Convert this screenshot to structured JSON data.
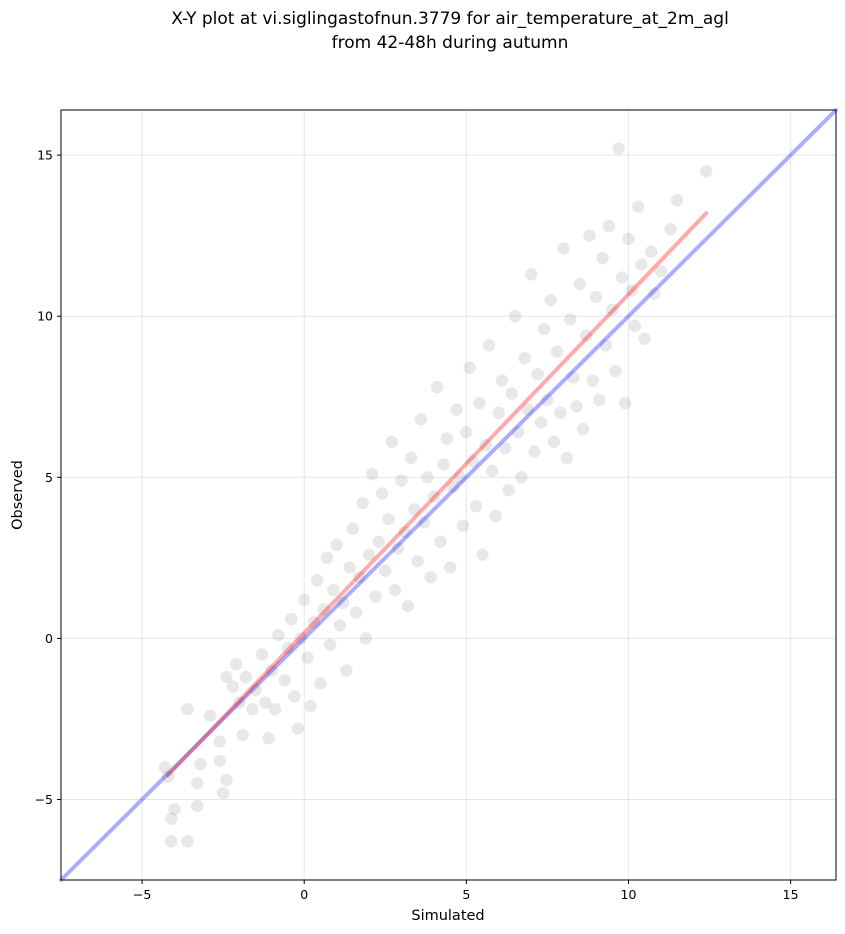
{
  "chart_data": {
    "type": "scatter",
    "title_lines": [
      "X-Y plot at vi.siglingastofnun.3779 for air_temperature_at_2m_agl",
      "from 42-48h during autumn"
    ],
    "xlabel": "Simulated",
    "ylabel": "Observed",
    "xlim": [
      -7.5,
      16.4
    ],
    "ylim": [
      -7.5,
      16.4
    ],
    "xticks": [
      -5,
      0,
      5,
      10,
      15
    ],
    "yticks": [
      -5,
      0,
      5,
      10,
      15
    ],
    "xtick_labels": [
      "−5",
      "0",
      "5",
      "10",
      "15"
    ],
    "ytick_labels": [
      "−5",
      "0",
      "5",
      "10",
      "15"
    ],
    "grid": true,
    "marker_color": "#000000",
    "marker_alpha": 0.09,
    "series": [
      {
        "type": "scatter",
        "points": [
          [
            -4.3,
            -4.0
          ],
          [
            -4.2,
            -4.3
          ],
          [
            -4.1,
            -5.6
          ],
          [
            -4.0,
            -5.3
          ],
          [
            -4.1,
            -6.3
          ],
          [
            -3.6,
            -6.3
          ],
          [
            -3.6,
            -2.2
          ],
          [
            -3.2,
            -3.9
          ],
          [
            -3.3,
            -4.5
          ],
          [
            -3.3,
            -5.2
          ],
          [
            -2.9,
            -2.4
          ],
          [
            -2.6,
            -3.2
          ],
          [
            -2.6,
            -3.8
          ],
          [
            -2.5,
            -4.8
          ],
          [
            -2.4,
            -4.4
          ],
          [
            -2.4,
            -1.2
          ],
          [
            -2.2,
            -1.5
          ],
          [
            -2.1,
            -0.8
          ],
          [
            -2.0,
            -2.0
          ],
          [
            -1.9,
            -3.0
          ],
          [
            -1.8,
            -1.2
          ],
          [
            -1.6,
            -2.2
          ],
          [
            -1.5,
            -1.6
          ],
          [
            -1.3,
            -0.5
          ],
          [
            -1.2,
            -2.0
          ],
          [
            -1.1,
            -3.1
          ],
          [
            -1.0,
            -1.0
          ],
          [
            -0.9,
            -2.2
          ],
          [
            -0.8,
            0.1
          ],
          [
            -0.6,
            -1.3
          ],
          [
            -0.5,
            -0.3
          ],
          [
            -0.4,
            0.6
          ],
          [
            -0.3,
            -1.8
          ],
          [
            -0.2,
            -2.8
          ],
          [
            -0.1,
            0.0
          ],
          [
            0.0,
            1.2
          ],
          [
            0.1,
            -0.6
          ],
          [
            0.2,
            -2.1
          ],
          [
            0.3,
            0.5
          ],
          [
            0.4,
            1.8
          ],
          [
            0.5,
            -1.4
          ],
          [
            0.6,
            0.9
          ],
          [
            0.7,
            2.5
          ],
          [
            0.8,
            -0.2
          ],
          [
            0.9,
            1.5
          ],
          [
            1.0,
            2.9
          ],
          [
            1.1,
            0.4
          ],
          [
            1.2,
            1.1
          ],
          [
            1.3,
            -1.0
          ],
          [
            1.4,
            2.2
          ],
          [
            1.5,
            3.4
          ],
          [
            1.6,
            0.8
          ],
          [
            1.7,
            1.9
          ],
          [
            1.8,
            4.2
          ],
          [
            1.9,
            0.0
          ],
          [
            2.0,
            2.6
          ],
          [
            2.1,
            5.1
          ],
          [
            2.2,
            1.3
          ],
          [
            2.3,
            3.0
          ],
          [
            2.4,
            4.5
          ],
          [
            2.5,
            2.1
          ],
          [
            2.6,
            3.7
          ],
          [
            2.7,
            6.1
          ],
          [
            2.8,
            1.5
          ],
          [
            2.9,
            2.8
          ],
          [
            3.0,
            4.9
          ],
          [
            3.1,
            3.3
          ],
          [
            3.2,
            1.0
          ],
          [
            3.3,
            5.6
          ],
          [
            3.4,
            4.0
          ],
          [
            3.5,
            2.4
          ],
          [
            3.6,
            6.8
          ],
          [
            3.7,
            3.6
          ],
          [
            3.8,
            5.0
          ],
          [
            3.9,
            1.9
          ],
          [
            4.0,
            4.4
          ],
          [
            4.1,
            7.8
          ],
          [
            4.2,
            3.0
          ],
          [
            4.3,
            5.4
          ],
          [
            4.4,
            6.2
          ],
          [
            4.5,
            2.2
          ],
          [
            4.6,
            4.7
          ],
          [
            4.7,
            7.1
          ],
          [
            4.8,
            5.0
          ],
          [
            4.9,
            3.5
          ],
          [
            5.0,
            6.4
          ],
          [
            5.1,
            8.4
          ],
          [
            5.2,
            5.5
          ],
          [
            5.3,
            4.1
          ],
          [
            5.4,
            7.3
          ],
          [
            5.5,
            2.6
          ],
          [
            5.6,
            6.0
          ],
          [
            5.7,
            9.1
          ],
          [
            5.8,
            5.2
          ],
          [
            5.9,
            3.8
          ],
          [
            6.0,
            7.0
          ],
          [
            6.1,
            8.0
          ],
          [
            6.2,
            5.9
          ],
          [
            6.3,
            4.6
          ],
          [
            6.4,
            7.6
          ],
          [
            6.5,
            10.0
          ],
          [
            6.6,
            6.4
          ],
          [
            6.7,
            5.0
          ],
          [
            6.8,
            8.7
          ],
          [
            6.9,
            7.1
          ],
          [
            7.0,
            11.3
          ],
          [
            7.1,
            5.8
          ],
          [
            7.2,
            8.2
          ],
          [
            7.3,
            6.7
          ],
          [
            7.4,
            9.6
          ],
          [
            7.5,
            7.4
          ],
          [
            7.6,
            10.5
          ],
          [
            7.7,
            6.1
          ],
          [
            7.8,
            8.9
          ],
          [
            7.9,
            7.0
          ],
          [
            8.0,
            12.1
          ],
          [
            8.1,
            5.6
          ],
          [
            8.2,
            9.9
          ],
          [
            8.3,
            8.1
          ],
          [
            8.4,
            7.2
          ],
          [
            8.5,
            11.0
          ],
          [
            8.6,
            6.5
          ],
          [
            8.7,
            9.4
          ],
          [
            8.8,
            12.5
          ],
          [
            8.9,
            8.0
          ],
          [
            9.0,
            10.6
          ],
          [
            9.1,
            7.4
          ],
          [
            9.2,
            11.8
          ],
          [
            9.3,
            9.1
          ],
          [
            9.4,
            12.8
          ],
          [
            9.5,
            10.2
          ],
          [
            9.6,
            8.3
          ],
          [
            9.7,
            15.2
          ],
          [
            9.8,
            11.2
          ],
          [
            9.9,
            7.3
          ],
          [
            10.0,
            12.4
          ],
          [
            10.1,
            10.8
          ],
          [
            10.2,
            9.7
          ],
          [
            10.3,
            13.4
          ],
          [
            10.4,
            11.6
          ],
          [
            10.5,
            9.3
          ],
          [
            10.7,
            12.0
          ],
          [
            10.8,
            10.7
          ],
          [
            11.0,
            11.4
          ],
          [
            11.3,
            12.7
          ],
          [
            11.5,
            13.6
          ],
          [
            12.4,
            14.5
          ]
        ]
      }
    ],
    "lines": [
      {
        "name": "",
        "color": "#0000ff",
        "alpha": 0.32,
        "x": [
          -7.5,
          16.4
        ],
        "y": [
          -7.5,
          16.4
        ]
      },
      {
        "name": "",
        "color": "#ff0000",
        "alpha": 0.33,
        "x": [
          -4.2,
          12.4
        ],
        "y": [
          -4.25,
          13.2
        ]
      }
    ]
  }
}
